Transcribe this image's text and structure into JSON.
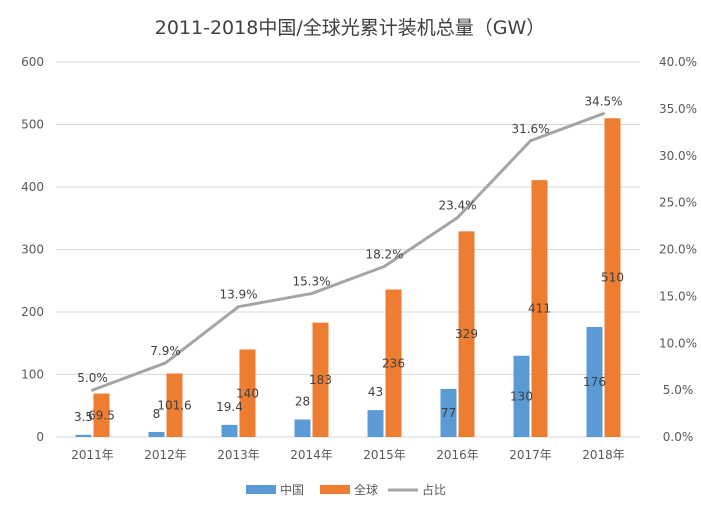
{
  "chart_data": {
    "type": "bar",
    "title": "2011-2018中国/全球光累计装机总量（GW）",
    "categories": [
      "2011年",
      "2012年",
      "2013年",
      "2014年",
      "2015年",
      "2016年",
      "2017年",
      "2018年"
    ],
    "series": [
      {
        "name": "中国",
        "type": "bar",
        "axis": "left",
        "color": "#5B9BD5",
        "values": [
          3.5,
          8,
          19.4,
          28,
          43,
          77,
          130,
          176
        ],
        "labels": [
          "3.5",
          "8",
          "19.4",
          "28",
          "43",
          "77",
          "130",
          "176"
        ]
      },
      {
        "name": "全球",
        "type": "bar",
        "axis": "left",
        "color": "#ED7D31",
        "values": [
          69.5,
          101.6,
          140,
          183,
          236,
          329,
          411,
          510
        ],
        "labels": [
          "69.5",
          "101.6",
          "140",
          "183",
          "236",
          "329",
          "411",
          "510"
        ]
      },
      {
        "name": "占比",
        "type": "line",
        "axis": "right",
        "color": "#A5A5A5",
        "values": [
          5.0,
          7.9,
          13.9,
          15.3,
          18.2,
          23.4,
          31.6,
          34.5
        ],
        "labels": [
          "5.0%",
          "7.9%",
          "13.9%",
          "15.3%",
          "18.2%",
          "23.4%",
          "31.6%",
          "34.5%"
        ]
      }
    ],
    "y_left": {
      "ylim": [
        0,
        600
      ],
      "ticks": [
        0,
        100,
        200,
        300,
        400,
        500,
        600
      ],
      "tick_labels": [
        "0",
        "100",
        "200",
        "300",
        "400",
        "500",
        "600"
      ]
    },
    "y_right": {
      "ylim": [
        0,
        40
      ],
      "ticks": [
        0,
        5,
        10,
        15,
        20,
        25,
        30,
        35,
        40
      ],
      "tick_labels": [
        "0.0%",
        "5.0%",
        "10.0%",
        "15.0%",
        "20.0%",
        "25.0%",
        "30.0%",
        "35.0%",
        "40.0%"
      ]
    },
    "grid": true,
    "legend_position": "bottom",
    "gridline_color": "#D9D9D9"
  }
}
